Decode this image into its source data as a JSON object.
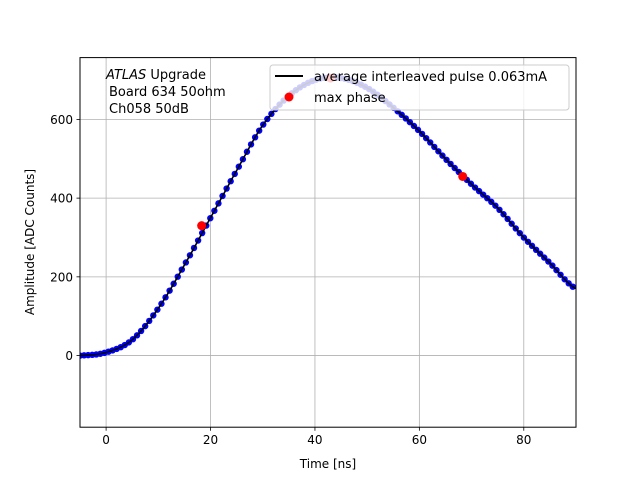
{
  "chart_data": {
    "type": "scatter",
    "title": "",
    "xlabel": "Time [ns]",
    "ylabel": "Amplitude [ADC Counts]",
    "xlim": [
      -5,
      90
    ],
    "ylim": [
      -182,
      757
    ],
    "xticks": [
      0,
      20,
      40,
      60,
      80
    ],
    "yticks": [
      0,
      200,
      400,
      600
    ],
    "grid": true,
    "annotation": {
      "italic": "ATLAS",
      "rest": " Upgrade",
      "line2": "Board 634 50ohm",
      "line3": "Ch058 50dB"
    },
    "legend": {
      "placement": "top-right",
      "entries": [
        "average interleaved pulse 0.063mA",
        "max phase"
      ]
    },
    "series": [
      {
        "name": "average interleaved pulse 0.063mA",
        "kind": "line+markers",
        "line_color": "#000000",
        "marker_color": "#0000ff",
        "sample_step_ns": 0.78,
        "x": [
          -5,
          0,
          5,
          10,
          15,
          20,
          25,
          30,
          35,
          40,
          45,
          50,
          55,
          60,
          65,
          70,
          75,
          80,
          85,
          90
        ],
        "y": [
          0,
          8,
          40,
          120,
          230,
          350,
          470,
          585,
          660,
          700,
          705,
          680,
          630,
          570,
          500,
          435,
          375,
          300,
          235,
          170
        ]
      },
      {
        "name": "max phase",
        "kind": "markers",
        "marker_color": "#ff0000",
        "x": [
          18.3,
          43.0,
          68.3
        ],
        "y": [
          330,
          705,
          455
        ]
      }
    ]
  }
}
